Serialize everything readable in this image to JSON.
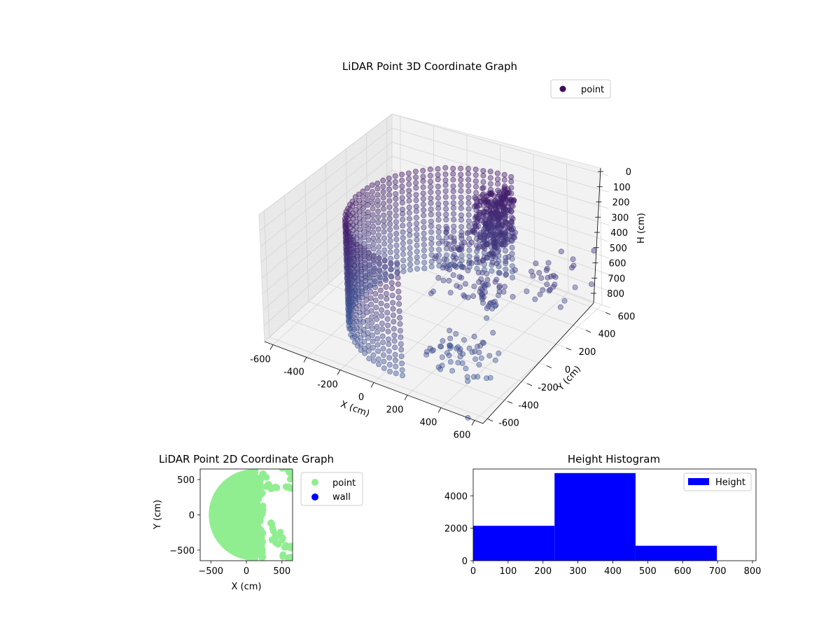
{
  "charts": {
    "scatter3d": {
      "title": "LiDAR Point 3D Coordinate Graph",
      "xlabel": "X (cm)",
      "ylabel": "Y (cm)",
      "zlabel": "H (cm)",
      "legend": "point"
    },
    "scatter2d": {
      "title": "LiDAR Point 2D Coordinate Graph",
      "xlabel": "X (cm)",
      "ylabel": "Y (cm)",
      "legend": [
        "point",
        "wall"
      ]
    },
    "hist": {
      "title": "Height Histogram",
      "legend": "Height"
    }
  },
  "chart_data": [
    {
      "type": "scatter",
      "title": "LiDAR Point 3D Coordinate Graph",
      "xlabel": "X (cm)",
      "ylabel": "Y (cm)",
      "zlabel": "H (cm)",
      "xlim": [
        -650,
        650
      ],
      "ylim": [
        -650,
        650
      ],
      "zlim": [
        0,
        800
      ],
      "z_inverted": true,
      "xticks": [
        -600,
        -400,
        -200,
        0,
        200,
        400,
        600
      ],
      "yticks": [
        -600,
        -400,
        -200,
        0,
        200,
        400,
        600
      ],
      "zticks": [
        0,
        100,
        200,
        300,
        400,
        500,
        600,
        700,
        800
      ],
      "legend_position": "top-right",
      "color": "#4a3d84",
      "series": [
        {
          "name": "point"
        }
      ]
    },
    {
      "type": "scatter",
      "title": "LiDAR Point 2D Coordinate Graph",
      "xlabel": "X (cm)",
      "ylabel": "Y (cm)",
      "xlim": [
        -650,
        650
      ],
      "ylim": [
        -650,
        650
      ],
      "xticks": [
        -500,
        0,
        500
      ],
      "yticks": [
        -500,
        0,
        500
      ],
      "legend_position": "outside-right",
      "series": [
        {
          "name": "point",
          "color": "#90ee90"
        },
        {
          "name": "wall",
          "color": "#0000ff"
        }
      ]
    },
    {
      "type": "bar",
      "title": "Height Histogram",
      "bin_edges": [
        0,
        233,
        465,
        698
      ],
      "values": [
        2150,
        5400,
        920
      ],
      "xlim": [
        0,
        810
      ],
      "ylim": [
        0,
        5650
      ],
      "xticks": [
        0,
        100,
        200,
        300,
        400,
        500,
        600,
        700,
        800
      ],
      "yticks": [
        0,
        2000,
        4000
      ],
      "legend_position": "top-right",
      "color": "#0000ff",
      "series": [
        {
          "name": "Height"
        }
      ]
    }
  ]
}
